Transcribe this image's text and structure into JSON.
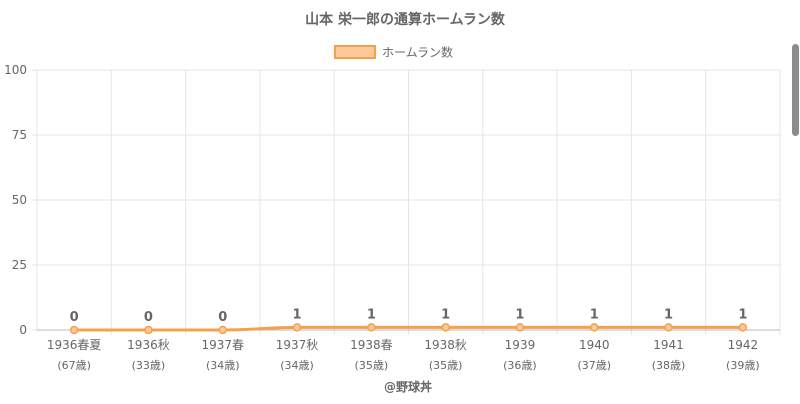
{
  "chart_data": {
    "type": "line",
    "title": "山本 栄一郎の通算ホームラン数",
    "legend": {
      "label": "ホームラン数",
      "placement": "top-center"
    },
    "categories": [
      "1936春夏",
      "1936秋",
      "1937春",
      "1937秋",
      "1938春",
      "1938秋",
      "1939",
      "1940",
      "1941",
      "1942"
    ],
    "category_sublabels": [
      "(67歳)",
      "(33歳)",
      "(34歳)",
      "(34歳)",
      "(35歳)",
      "(35歳)",
      "(36歳)",
      "(37歳)",
      "(38歳)",
      "(39歳)"
    ],
    "series": [
      {
        "name": "ホームラン数",
        "values": [
          0,
          0,
          0,
          1,
          1,
          1,
          1,
          1,
          1,
          1
        ]
      }
    ],
    "ylim": [
      0,
      100
    ],
    "yticks": [
      0,
      25,
      50,
      75,
      100
    ],
    "grid": true,
    "colors": {
      "line": "#f5a04a",
      "fill": "#fbc99a",
      "grid": "#e5e5e5",
      "axis": "#bbbbbb",
      "text": "#666666"
    }
  },
  "footer": {
    "credit": "@野球丼"
  }
}
